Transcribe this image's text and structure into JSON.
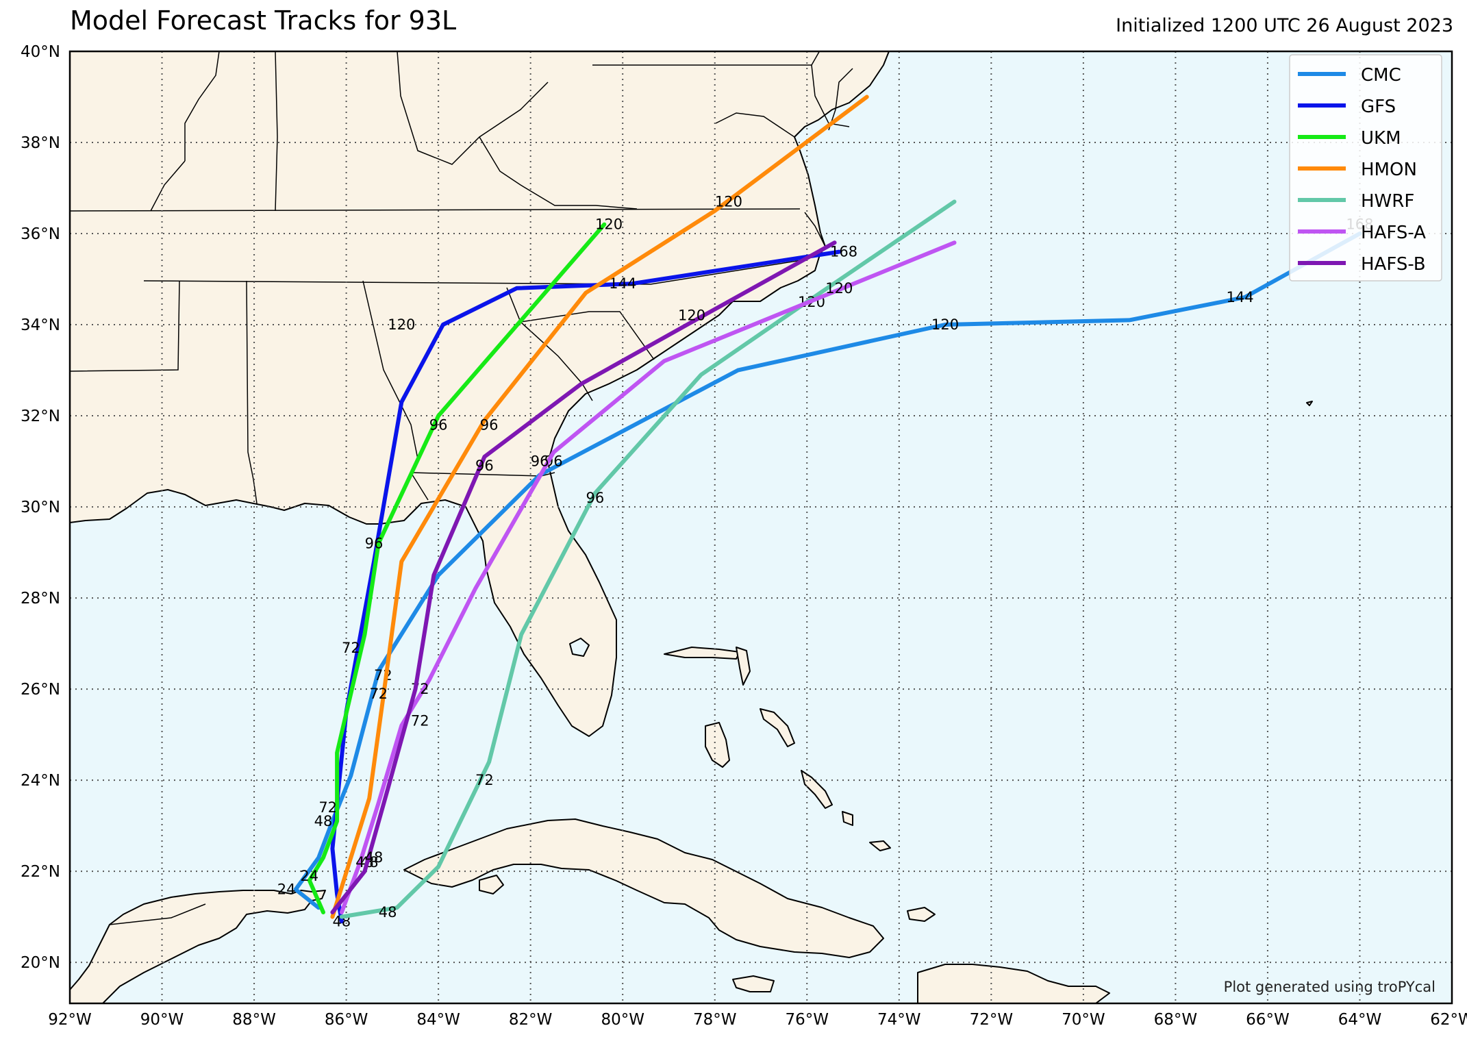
{
  "header": {
    "title": "Model Forecast Tracks for 93L",
    "initialized": "Initialized 1200 UTC 26 August 2023"
  },
  "footer": {
    "credit": "Plot generated using troPYcal"
  },
  "map": {
    "lon_range": [
      -92,
      -62
    ],
    "lat_range": [
      19.1,
      40
    ],
    "lat_ticks": [
      {
        "value": 40,
        "label": "40°N"
      },
      {
        "value": 38,
        "label": "38°N"
      },
      {
        "value": 36,
        "label": "36°N"
      },
      {
        "value": 34,
        "label": "34°N"
      },
      {
        "value": 32,
        "label": "32°N"
      },
      {
        "value": 30,
        "label": "30°N"
      },
      {
        "value": 28,
        "label": "28°N"
      },
      {
        "value": 26,
        "label": "26°N"
      },
      {
        "value": 24,
        "label": "24°N"
      },
      {
        "value": 22,
        "label": "22°N"
      },
      {
        "value": 20,
        "label": "20°N"
      }
    ],
    "lon_ticks": [
      {
        "value": -92,
        "label": "92°W"
      },
      {
        "value": -90,
        "label": "90°W"
      },
      {
        "value": -88,
        "label": "88°W"
      },
      {
        "value": -86,
        "label": "86°W"
      },
      {
        "value": -84,
        "label": "84°W"
      },
      {
        "value": -82,
        "label": "82°W"
      },
      {
        "value": -80,
        "label": "80°W"
      },
      {
        "value": -78,
        "label": "78°W"
      },
      {
        "value": -76,
        "label": "76°W"
      },
      {
        "value": -74,
        "label": "74°W"
      },
      {
        "value": -72,
        "label": "72°W"
      },
      {
        "value": -70,
        "label": "70°W"
      },
      {
        "value": -68,
        "label": "68°W"
      },
      {
        "value": -66,
        "label": "66°W"
      },
      {
        "value": -64,
        "label": "64°W"
      },
      {
        "value": -62,
        "label": "62°W"
      }
    ],
    "colors": {
      "land": "#faf3e6",
      "ocean": "#eaf8fc",
      "coast": "#000000",
      "grid": "#555555"
    }
  },
  "legend": [
    {
      "name": "CMC",
      "color": "#1e8ae6"
    },
    {
      "name": "GFS",
      "color": "#0a14ea"
    },
    {
      "name": "UKM",
      "color": "#16ea16"
    },
    {
      "name": "HMON",
      "color": "#ff8a0a"
    },
    {
      "name": "HWRF",
      "color": "#62c8a8"
    },
    {
      "name": "HAFS-A",
      "color": "#bf55f2"
    },
    {
      "name": "HAFS-B",
      "color": "#7e17b2"
    }
  ],
  "tracks": [
    {
      "model": "CMC",
      "color": "#1e8ae6",
      "points": [
        [
          -86.6,
          21.2
        ],
        [
          -87.1,
          21.6
        ],
        [
          -86.6,
          22.3
        ],
        [
          -86.3,
          23.1
        ],
        [
          -85.9,
          24.1
        ],
        [
          -85.3,
          26.4
        ],
        [
          -84.0,
          28.5
        ],
        [
          -81.8,
          30.7
        ],
        [
          -77.5,
          33.0
        ],
        [
          -73.0,
          34.0
        ],
        [
          -69.0,
          34.1
        ],
        [
          -66.5,
          34.6
        ],
        [
          -64.0,
          36.0
        ]
      ],
      "labels": [
        {
          "lon": -87.3,
          "lat": 21.6,
          "text": "24"
        },
        {
          "lon": -86.5,
          "lat": 23.1,
          "text": "48"
        },
        {
          "lon": -85.2,
          "lat": 26.3,
          "text": "72"
        },
        {
          "lon": -81.5,
          "lat": 31.0,
          "text": "96"
        },
        {
          "lon": -73.0,
          "lat": 34.0,
          "text": "120"
        },
        {
          "lon": -66.6,
          "lat": 34.6,
          "text": "144"
        },
        {
          "lon": -64.0,
          "lat": 36.2,
          "text": "168"
        }
      ]
    },
    {
      "model": "GFS",
      "color": "#0a14ea",
      "points": [
        [
          -86.1,
          20.9
        ],
        [
          -86.2,
          21.5
        ],
        [
          -86.3,
          22.5
        ],
        [
          -86.2,
          23.5
        ],
        [
          -86.0,
          25.5
        ],
        [
          -85.4,
          28.8
        ],
        [
          -84.8,
          32.3
        ],
        [
          -83.9,
          34.0
        ],
        [
          -82.3,
          34.8
        ],
        [
          -79.8,
          34.9
        ],
        [
          -75.3,
          35.6
        ]
      ],
      "labels": [
        {
          "lon": -86.1,
          "lat": 20.9,
          "text": "48"
        },
        {
          "lon": -84.8,
          "lat": 34.0,
          "text": "120"
        },
        {
          "lon": -80.0,
          "lat": 34.9,
          "text": "144"
        },
        {
          "lon": -75.2,
          "lat": 35.6,
          "text": "168"
        }
      ]
    },
    {
      "model": "UKM",
      "color": "#16ea16",
      "points": [
        [
          -86.5,
          21.1
        ],
        [
          -86.8,
          21.8
        ],
        [
          -86.5,
          22.3
        ],
        [
          -86.2,
          23.1
        ],
        [
          -86.2,
          24.6
        ],
        [
          -85.6,
          27.2
        ],
        [
          -85.3,
          29.2
        ],
        [
          -84.0,
          32.0
        ],
        [
          -80.4,
          36.2
        ]
      ],
      "labels": [
        {
          "lon": -86.8,
          "lat": 21.9,
          "text": "24"
        },
        {
          "lon": -86.4,
          "lat": 23.4,
          "text": "72"
        },
        {
          "lon": -85.9,
          "lat": 26.9,
          "text": "72"
        },
        {
          "lon": -85.4,
          "lat": 29.2,
          "text": "96"
        },
        {
          "lon": -84.0,
          "lat": 31.8,
          "text": "96"
        },
        {
          "lon": -80.3,
          "lat": 36.2,
          "text": "120"
        }
      ]
    },
    {
      "model": "HMON",
      "color": "#ff8a0a",
      "points": [
        [
          -86.3,
          21.0
        ],
        [
          -85.9,
          22.3
        ],
        [
          -85.5,
          23.6
        ],
        [
          -85.2,
          25.8
        ],
        [
          -84.8,
          28.8
        ],
        [
          -83.0,
          31.9
        ],
        [
          -80.8,
          34.7
        ],
        [
          -78.0,
          36.5
        ],
        [
          -74.7,
          39.0
        ]
      ],
      "labels": [
        {
          "lon": -85.5,
          "lat": 22.2,
          "text": "48"
        },
        {
          "lon": -85.3,
          "lat": 25.9,
          "text": "72"
        },
        {
          "lon": -82.9,
          "lat": 31.8,
          "text": "96"
        },
        {
          "lon": -77.7,
          "lat": 36.7,
          "text": "120"
        }
      ]
    },
    {
      "model": "HWRF",
      "color": "#62c8a8",
      "points": [
        [
          -86.1,
          21.0
        ],
        [
          -84.9,
          21.2
        ],
        [
          -84.0,
          22.1
        ],
        [
          -82.9,
          24.4
        ],
        [
          -82.2,
          27.2
        ],
        [
          -80.6,
          30.3
        ],
        [
          -78.3,
          32.9
        ],
        [
          -76.0,
          34.5
        ],
        [
          -72.8,
          36.7
        ]
      ],
      "labels": [
        {
          "lon": -85.1,
          "lat": 21.1,
          "text": "48"
        },
        {
          "lon": -83.0,
          "lat": 24.0,
          "text": "72"
        },
        {
          "lon": -80.6,
          "lat": 30.2,
          "text": "96"
        },
        {
          "lon": -75.9,
          "lat": 34.5,
          "text": "120"
        }
      ]
    },
    {
      "model": "HAFS-A",
      "color": "#bf55f2",
      "points": [
        [
          -86.1,
          21.1
        ],
        [
          -85.7,
          22.2
        ],
        [
          -85.3,
          23.5
        ],
        [
          -84.8,
          25.2
        ],
        [
          -84.2,
          26.2
        ],
        [
          -83.2,
          28.2
        ],
        [
          -81.5,
          31.2
        ],
        [
          -79.1,
          33.2
        ],
        [
          -72.8,
          35.8
        ]
      ],
      "labels": [
        {
          "lon": -85.6,
          "lat": 22.2,
          "text": "48"
        },
        {
          "lon": -84.4,
          "lat": 26.0,
          "text": "72"
        },
        {
          "lon": -81.8,
          "lat": 31.0,
          "text": "96"
        },
        {
          "lon": -75.3,
          "lat": 34.8,
          "text": "120"
        }
      ]
    },
    {
      "model": "HAFS-B",
      "color": "#7e17b2",
      "points": [
        [
          -86.3,
          21.1
        ],
        [
          -85.6,
          22.0
        ],
        [
          -85.1,
          23.8
        ],
        [
          -84.5,
          26.0
        ],
        [
          -84.1,
          28.5
        ],
        [
          -83.0,
          31.1
        ],
        [
          -80.9,
          32.7
        ],
        [
          -78.6,
          34.0
        ],
        [
          -75.4,
          35.8
        ]
      ],
      "labels": [
        {
          "lon": -85.4,
          "lat": 22.3,
          "text": "48"
        },
        {
          "lon": -84.4,
          "lat": 25.3,
          "text": "72"
        },
        {
          "lon": -83.0,
          "lat": 30.9,
          "text": "96"
        },
        {
          "lon": -78.5,
          "lat": 34.2,
          "text": "120"
        }
      ]
    }
  ]
}
